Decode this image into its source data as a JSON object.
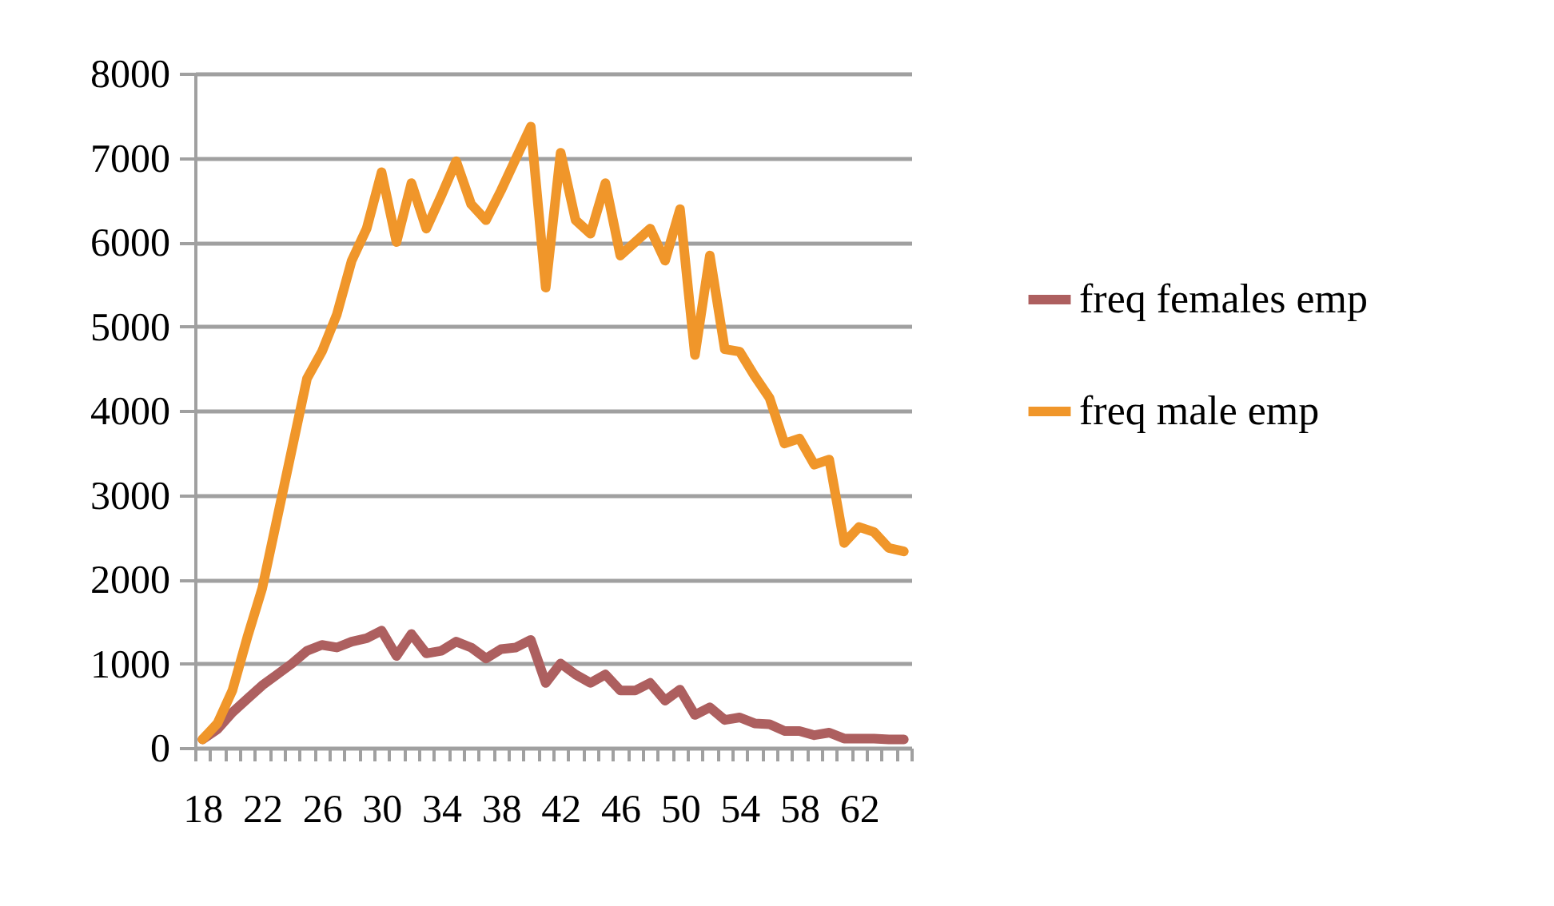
{
  "chart_data": {
    "type": "line",
    "categories": [
      "18",
      null,
      null,
      null,
      "22",
      null,
      null,
      null,
      "26",
      null,
      null,
      null,
      "30",
      null,
      null,
      null,
      "34",
      null,
      null,
      null,
      "38",
      null,
      null,
      null,
      "42",
      null,
      null,
      null,
      "46",
      null,
      null,
      null,
      "50",
      null,
      null,
      null,
      "54",
      null,
      null,
      null,
      "58",
      null,
      null,
      null,
      "62",
      null,
      null,
      null
    ],
    "series": [
      {
        "name": "freq females emp",
        "color": "#ad5f5f",
        "values": [
          100,
          220,
          420,
          580,
          740,
          870,
          1000,
          1150,
          1220,
          1190,
          1260,
          1300,
          1390,
          1090,
          1350,
          1120,
          1150,
          1260,
          1190,
          1060,
          1170,
          1190,
          1280,
          770,
          1000,
          870,
          770,
          870,
          680,
          680,
          770,
          560,
          690,
          390,
          480,
          330,
          360,
          290,
          280,
          200,
          200,
          150,
          180,
          110,
          110,
          110,
          100,
          100
        ]
      },
      {
        "name": "freq male emp",
        "color": "#f0962a",
        "values": [
          100,
          290,
          680,
          1310,
          1890,
          2720,
          3550,
          4380,
          4700,
          5140,
          5780,
          6160,
          6830,
          6000,
          6700,
          6160,
          6550,
          6960,
          6450,
          6260,
          6610,
          6990,
          7370,
          5460,
          7060,
          6260,
          6100,
          6700,
          5840,
          6000,
          6160,
          5780,
          6390,
          4660,
          5840,
          4730,
          4700,
          4410,
          4150,
          3610,
          3670,
          3360,
          3420,
          2430,
          2620,
          2560,
          2370,
          2330
        ]
      }
    ],
    "ylim": [
      0,
      8000
    ],
    "yticks": [
      0,
      1000,
      2000,
      3000,
      4000,
      5000,
      6000,
      7000,
      8000
    ],
    "grid": "y",
    "legend": "right",
    "marker": "none",
    "line_style": "solid"
  }
}
